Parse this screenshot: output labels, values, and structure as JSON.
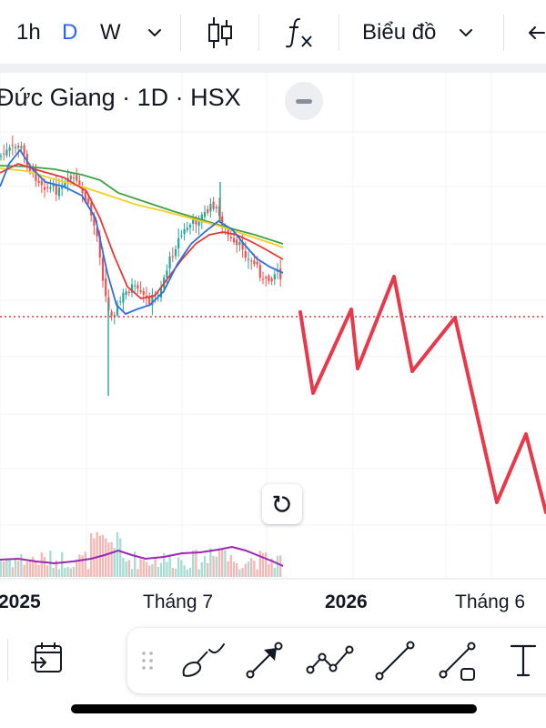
{
  "toolbar": {
    "interval_1h": "1h",
    "interval_d": "D",
    "interval_w": "W",
    "chart_type_label": "Biểu đồ",
    "icons": [
      "chevron-down-icon",
      "candlestick-icon",
      "fx-icon",
      "undo-icon"
    ]
  },
  "legend": {
    "title": "Đức Giang · 1D · HSX"
  },
  "time_axis": {
    "labels": [
      "2025",
      "Tháng 7",
      "2026",
      "Tháng 6"
    ]
  },
  "drawing_toolbar": {
    "icons": [
      "calendar-goto-icon",
      "drag-handle-icon",
      "brush-icon",
      "trend-arrow-icon",
      "path-icon",
      "trend-line-icon",
      "line-tool-icon",
      "text-tool-icon"
    ]
  },
  "colors": {
    "accent": "#2962ff",
    "drawing": "#e8394a",
    "ma_blue": "#2f6fe0",
    "ma_red": "#e53935",
    "ma_yellow": "#f2d024",
    "ma_green": "#43a047",
    "volume_ma": "#9c27b0",
    "up": "#26a69a",
    "down": "#ef5350",
    "price_line": "#e53935"
  }
}
